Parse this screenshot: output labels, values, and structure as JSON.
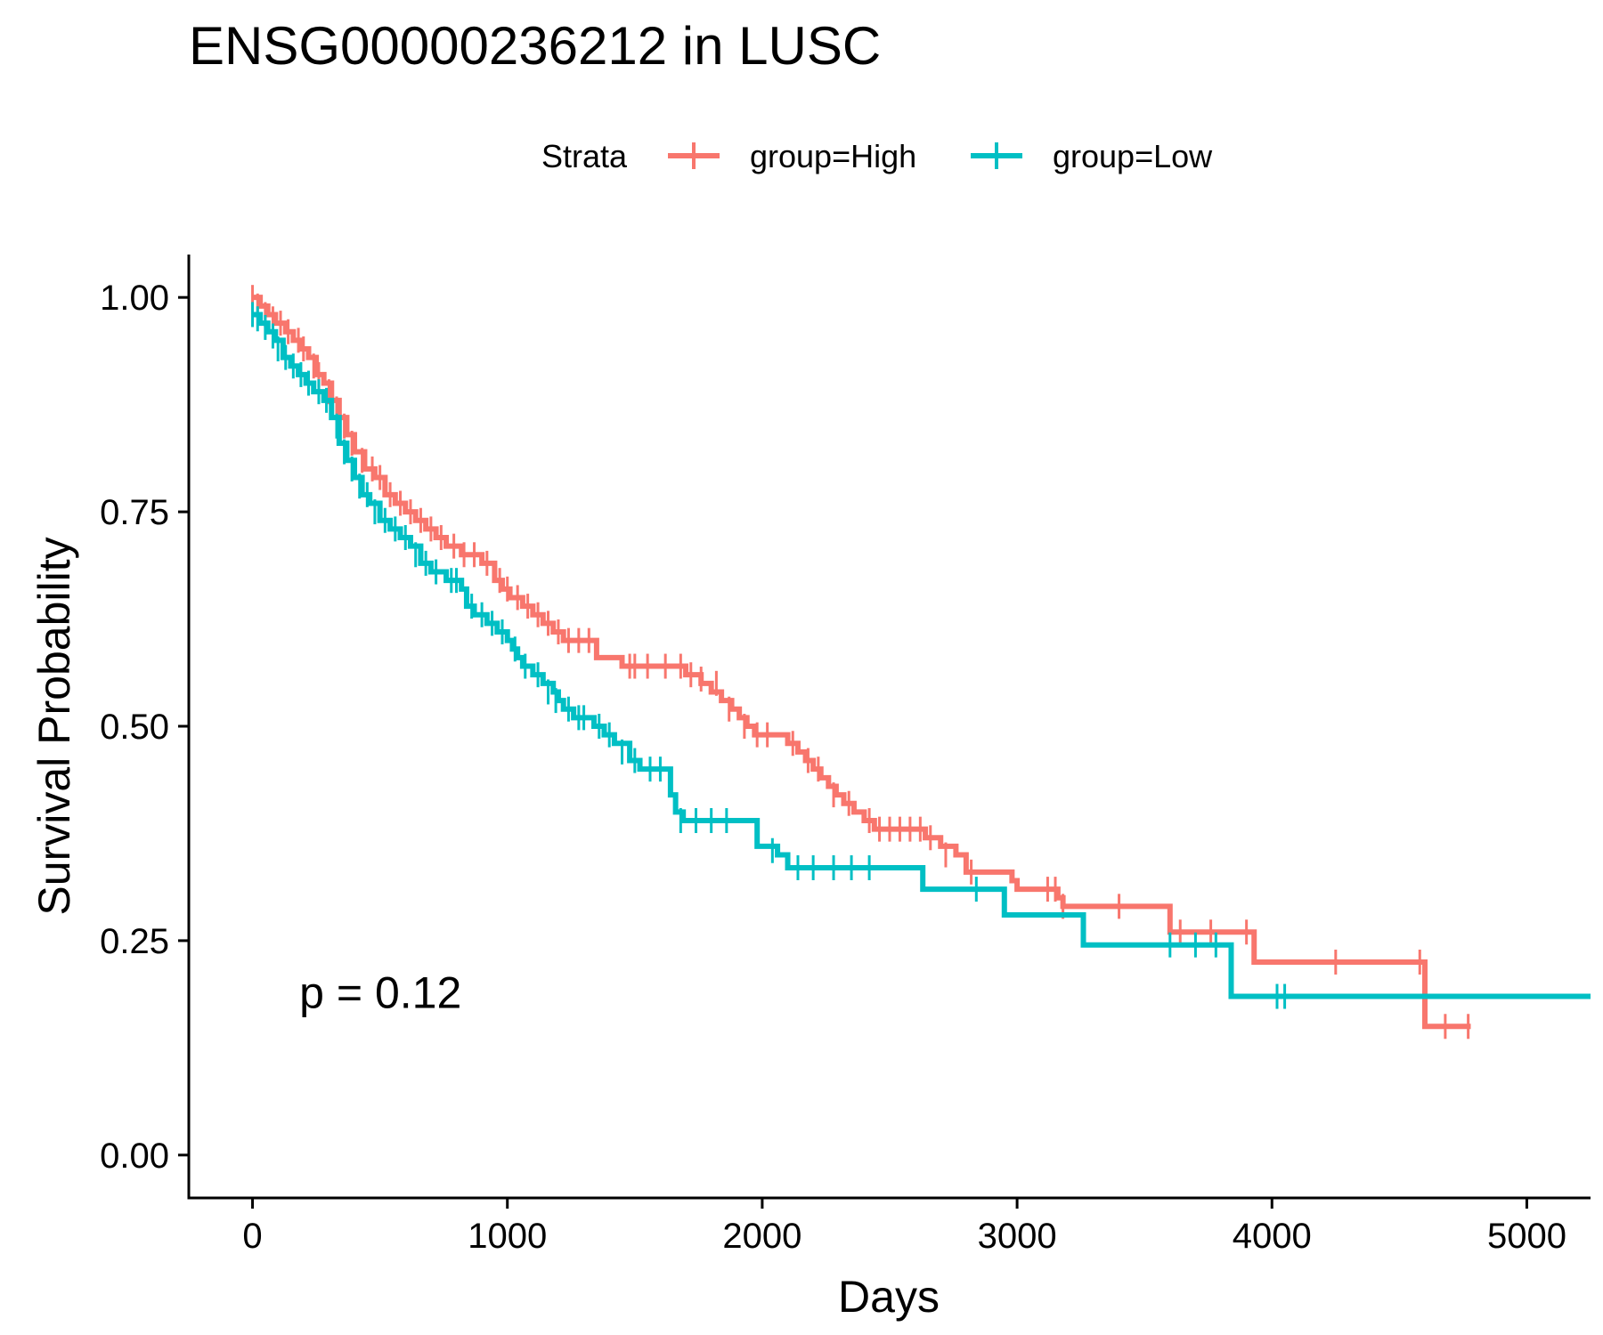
{
  "chart_data": {
    "type": "line",
    "title": "ENSG00000236212 in LUSC",
    "xlabel": "Days",
    "ylabel": "Survival Probability",
    "xlim": [
      -250,
      5250
    ],
    "ylim": [
      -0.05,
      1.05
    ],
    "x_ticks": [
      0,
      1000,
      2000,
      3000,
      4000,
      5000
    ],
    "x_tick_labels": [
      "0",
      "1000",
      "2000",
      "3000",
      "4000",
      "5000"
    ],
    "y_ticks": [
      0,
      0.25,
      0.5,
      0.75,
      1.0
    ],
    "y_tick_labels": [
      "0.00",
      "0.25",
      "0.50",
      "0.75",
      "1.00"
    ],
    "legend": {
      "title": "Strata",
      "position": "top"
    },
    "annotation": {
      "text": "p = 0.12",
      "x": 100,
      "y": 0.19
    },
    "grid": false,
    "series": [
      {
        "name": "group=High",
        "color": "#F8766D",
        "steps": [
          [
            0,
            1.0
          ],
          [
            30,
            0.99
          ],
          [
            60,
            0.98
          ],
          [
            90,
            0.97
          ],
          [
            130,
            0.96
          ],
          [
            160,
            0.95
          ],
          [
            190,
            0.94
          ],
          [
            220,
            0.93
          ],
          [
            250,
            0.91
          ],
          [
            280,
            0.9
          ],
          [
            310,
            0.88
          ],
          [
            340,
            0.86
          ],
          [
            370,
            0.84
          ],
          [
            400,
            0.82
          ],
          [
            440,
            0.8
          ],
          [
            480,
            0.79
          ],
          [
            520,
            0.77
          ],
          [
            560,
            0.76
          ],
          [
            600,
            0.75
          ],
          [
            640,
            0.74
          ],
          [
            680,
            0.73
          ],
          [
            720,
            0.72
          ],
          [
            760,
            0.71
          ],
          [
            820,
            0.7
          ],
          [
            900,
            0.69
          ],
          [
            950,
            0.67
          ],
          [
            980,
            0.66
          ],
          [
            1010,
            0.65
          ],
          [
            1060,
            0.64
          ],
          [
            1100,
            0.63
          ],
          [
            1140,
            0.62
          ],
          [
            1180,
            0.61
          ],
          [
            1220,
            0.6
          ],
          [
            1350,
            0.58
          ],
          [
            1450,
            0.57
          ],
          [
            1700,
            0.56
          ],
          [
            1760,
            0.55
          ],
          [
            1800,
            0.54
          ],
          [
            1840,
            0.53
          ],
          [
            1880,
            0.52
          ],
          [
            1910,
            0.51
          ],
          [
            1940,
            0.5
          ],
          [
            1970,
            0.49
          ],
          [
            2100,
            0.48
          ],
          [
            2140,
            0.47
          ],
          [
            2170,
            0.46
          ],
          [
            2200,
            0.45
          ],
          [
            2230,
            0.44
          ],
          [
            2260,
            0.43
          ],
          [
            2290,
            0.42
          ],
          [
            2320,
            0.41
          ],
          [
            2360,
            0.4
          ],
          [
            2400,
            0.39
          ],
          [
            2440,
            0.38
          ],
          [
            2640,
            0.37
          ],
          [
            2700,
            0.36
          ],
          [
            2760,
            0.35
          ],
          [
            2800,
            0.34
          ],
          [
            2800,
            0.33
          ],
          [
            2980,
            0.32
          ],
          [
            3000,
            0.31
          ],
          [
            3140,
            0.31
          ],
          [
            3160,
            0.3
          ],
          [
            3180,
            0.29
          ],
          [
            3600,
            0.26
          ],
          [
            3930,
            0.225
          ],
          [
            4600,
            0.15
          ]
        ],
        "end_x": 4780,
        "censors": [
          [
            0,
            1.0
          ],
          [
            20,
            0.99
          ],
          [
            50,
            0.98
          ],
          [
            80,
            0.975
          ],
          [
            110,
            0.97
          ],
          [
            140,
            0.96
          ],
          [
            180,
            0.95
          ],
          [
            200,
            0.94
          ],
          [
            240,
            0.92
          ],
          [
            260,
            0.91
          ],
          [
            300,
            0.89
          ],
          [
            330,
            0.87
          ],
          [
            360,
            0.85
          ],
          [
            390,
            0.83
          ],
          [
            430,
            0.81
          ],
          [
            470,
            0.8
          ],
          [
            500,
            0.79
          ],
          [
            540,
            0.77
          ],
          [
            580,
            0.76
          ],
          [
            620,
            0.75
          ],
          [
            660,
            0.74
          ],
          [
            700,
            0.73
          ],
          [
            740,
            0.72
          ],
          [
            790,
            0.71
          ],
          [
            830,
            0.7
          ],
          [
            870,
            0.7
          ],
          [
            920,
            0.69
          ],
          [
            970,
            0.67
          ],
          [
            1000,
            0.66
          ],
          [
            1040,
            0.65
          ],
          [
            1080,
            0.64
          ],
          [
            1120,
            0.63
          ],
          [
            1160,
            0.62
          ],
          [
            1200,
            0.61
          ],
          [
            1240,
            0.6
          ],
          [
            1280,
            0.6
          ],
          [
            1320,
            0.6
          ],
          [
            1480,
            0.57
          ],
          [
            1500,
            0.57
          ],
          [
            1550,
            0.57
          ],
          [
            1620,
            0.57
          ],
          [
            1680,
            0.57
          ],
          [
            1720,
            0.56
          ],
          [
            1760,
            0.555
          ],
          [
            1820,
            0.55
          ],
          [
            1870,
            0.52
          ],
          [
            1930,
            0.5
          ],
          [
            1980,
            0.49
          ],
          [
            2020,
            0.49
          ],
          [
            2120,
            0.48
          ],
          [
            2180,
            0.46
          ],
          [
            2220,
            0.45
          ],
          [
            2280,
            0.42
          ],
          [
            2340,
            0.41
          ],
          [
            2420,
            0.39
          ],
          [
            2460,
            0.38
          ],
          [
            2500,
            0.38
          ],
          [
            2540,
            0.38
          ],
          [
            2580,
            0.38
          ],
          [
            2620,
            0.38
          ],
          [
            2660,
            0.37
          ],
          [
            2720,
            0.35
          ],
          [
            2820,
            0.33
          ],
          [
            3120,
            0.31
          ],
          [
            3150,
            0.31
          ],
          [
            3180,
            0.29
          ],
          [
            3400,
            0.29
          ],
          [
            3640,
            0.26
          ],
          [
            3760,
            0.26
          ],
          [
            3900,
            0.26
          ],
          [
            4250,
            0.225
          ],
          [
            4580,
            0.225
          ],
          [
            4680,
            0.15
          ],
          [
            4770,
            0.15
          ]
        ]
      },
      {
        "name": "group=Low",
        "color": "#00BFC4",
        "steps": [
          [
            0,
            0.98
          ],
          [
            30,
            0.97
          ],
          [
            60,
            0.96
          ],
          [
            90,
            0.95
          ],
          [
            120,
            0.93
          ],
          [
            150,
            0.92
          ],
          [
            180,
            0.91
          ],
          [
            210,
            0.9
          ],
          [
            240,
            0.89
          ],
          [
            280,
            0.88
          ],
          [
            310,
            0.86
          ],
          [
            340,
            0.83
          ],
          [
            370,
            0.81
          ],
          [
            400,
            0.79
          ],
          [
            430,
            0.77
          ],
          [
            460,
            0.76
          ],
          [
            500,
            0.74
          ],
          [
            540,
            0.73
          ],
          [
            580,
            0.72
          ],
          [
            620,
            0.71
          ],
          [
            660,
            0.69
          ],
          [
            700,
            0.68
          ],
          [
            760,
            0.67
          ],
          [
            820,
            0.66
          ],
          [
            840,
            0.64
          ],
          [
            870,
            0.63
          ],
          [
            920,
            0.62
          ],
          [
            960,
            0.61
          ],
          [
            1000,
            0.6
          ],
          [
            1020,
            0.59
          ],
          [
            1040,
            0.58
          ],
          [
            1060,
            0.57
          ],
          [
            1100,
            0.56
          ],
          [
            1140,
            0.55
          ],
          [
            1180,
            0.54
          ],
          [
            1200,
            0.53
          ],
          [
            1220,
            0.52
          ],
          [
            1260,
            0.51
          ],
          [
            1340,
            0.5
          ],
          [
            1380,
            0.49
          ],
          [
            1420,
            0.48
          ],
          [
            1480,
            0.46
          ],
          [
            1520,
            0.45
          ],
          [
            1640,
            0.42
          ],
          [
            1660,
            0.4
          ],
          [
            1690,
            0.39
          ],
          [
            1980,
            0.36
          ],
          [
            2060,
            0.35
          ],
          [
            2100,
            0.335
          ],
          [
            2630,
            0.31
          ],
          [
            2950,
            0.28
          ],
          [
            3260,
            0.245
          ],
          [
            3840,
            0.185
          ]
        ],
        "end_x": 5250,
        "censors": [
          [
            0,
            0.98
          ],
          [
            20,
            0.975
          ],
          [
            50,
            0.965
          ],
          [
            80,
            0.955
          ],
          [
            100,
            0.94
          ],
          [
            130,
            0.93
          ],
          [
            160,
            0.92
          ],
          [
            190,
            0.91
          ],
          [
            220,
            0.9
          ],
          [
            260,
            0.89
          ],
          [
            290,
            0.88
          ],
          [
            330,
            0.85
          ],
          [
            360,
            0.82
          ],
          [
            390,
            0.8
          ],
          [
            420,
            0.78
          ],
          [
            450,
            0.77
          ],
          [
            480,
            0.75
          ],
          [
            520,
            0.74
          ],
          [
            560,
            0.73
          ],
          [
            600,
            0.72
          ],
          [
            640,
            0.7
          ],
          [
            680,
            0.69
          ],
          [
            720,
            0.68
          ],
          [
            780,
            0.67
          ],
          [
            800,
            0.67
          ],
          [
            860,
            0.64
          ],
          [
            900,
            0.63
          ],
          [
            940,
            0.62
          ],
          [
            980,
            0.61
          ],
          [
            1030,
            0.59
          ],
          [
            1070,
            0.57
          ],
          [
            1120,
            0.56
          ],
          [
            1160,
            0.54
          ],
          [
            1190,
            0.53
          ],
          [
            1240,
            0.52
          ],
          [
            1280,
            0.51
          ],
          [
            1300,
            0.51
          ],
          [
            1360,
            0.5
          ],
          [
            1400,
            0.49
          ],
          [
            1450,
            0.47
          ],
          [
            1500,
            0.46
          ],
          [
            1560,
            0.45
          ],
          [
            1600,
            0.45
          ],
          [
            1680,
            0.39
          ],
          [
            1740,
            0.39
          ],
          [
            1800,
            0.39
          ],
          [
            1860,
            0.39
          ],
          [
            2040,
            0.355
          ],
          [
            2140,
            0.335
          ],
          [
            2200,
            0.335
          ],
          [
            2280,
            0.335
          ],
          [
            2350,
            0.335
          ],
          [
            2420,
            0.335
          ],
          [
            2840,
            0.31
          ],
          [
            3600,
            0.245
          ],
          [
            3700,
            0.245
          ],
          [
            3780,
            0.245
          ],
          [
            4020,
            0.185
          ],
          [
            4050,
            0.185
          ]
        ]
      }
    ]
  }
}
